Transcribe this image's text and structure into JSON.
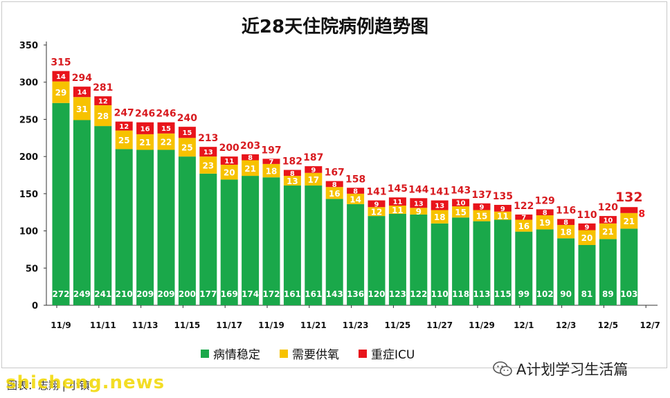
{
  "chart_data": {
    "type": "bar",
    "stacked": true,
    "title": "近28天住院病例趋势图",
    "categories": [
      "11/9",
      "11/10",
      "11/11",
      "11/12",
      "11/13",
      "11/14",
      "11/15",
      "11/16",
      "11/17",
      "11/18",
      "11/19",
      "11/20",
      "11/21",
      "11/22",
      "11/23",
      "11/24",
      "11/25",
      "11/26",
      "11/27",
      "11/28",
      "11/29",
      "11/30",
      "12/1",
      "12/2",
      "12/3",
      "12/4",
      "12/5",
      "12/6"
    ],
    "x_tick_labels": [
      "11/9",
      "11/11",
      "11/13",
      "11/15",
      "11/17",
      "11/19",
      "11/21",
      "11/23",
      "11/25",
      "11/27",
      "11/29",
      "12/1",
      "12/3",
      "12/5",
      "12/7"
    ],
    "ylim": [
      0,
      350
    ],
    "yticks": [
      0,
      50,
      100,
      150,
      200,
      250,
      300,
      350
    ],
    "series": [
      {
        "name": "病情稳定",
        "color": "#1aa84a",
        "values": [
          272,
          249,
          241,
          210,
          209,
          209,
          200,
          177,
          169,
          174,
          172,
          161,
          161,
          143,
          136,
          120,
          123,
          122,
          110,
          118,
          113,
          115,
          99,
          102,
          90,
          81,
          89,
          103
        ]
      },
      {
        "name": "需要供氧",
        "color": "#f7c200",
        "values": [
          29,
          31,
          28,
          25,
          21,
          22,
          25,
          23,
          20,
          21,
          18,
          13,
          17,
          16,
          14,
          12,
          11,
          9,
          18,
          15,
          15,
          11,
          16,
          19,
          18,
          20,
          21,
          21
        ]
      },
      {
        "name": "重症ICU",
        "color": "#e8141b",
        "values": [
          14,
          14,
          12,
          12,
          16,
          15,
          15,
          13,
          11,
          8,
          7,
          8,
          9,
          8,
          8,
          9,
          11,
          13,
          13,
          10,
          9,
          9,
          7,
          8,
          8,
          9,
          10,
          8
        ]
      }
    ],
    "totals": [
      315,
      294,
      281,
      247,
      246,
      246,
      240,
      213,
      200,
      203,
      197,
      182,
      187,
      167,
      158,
      141,
      145,
      144,
      141,
      143,
      137,
      135,
      122,
      129,
      116,
      110,
      120,
      132
    ],
    "legend_position": "bottom",
    "grid": false
  },
  "footer": {
    "wechat_account": "A计划学习生活篇",
    "credit": "图表：志翔 | 小镇",
    "watermark": "shicheng.news"
  }
}
